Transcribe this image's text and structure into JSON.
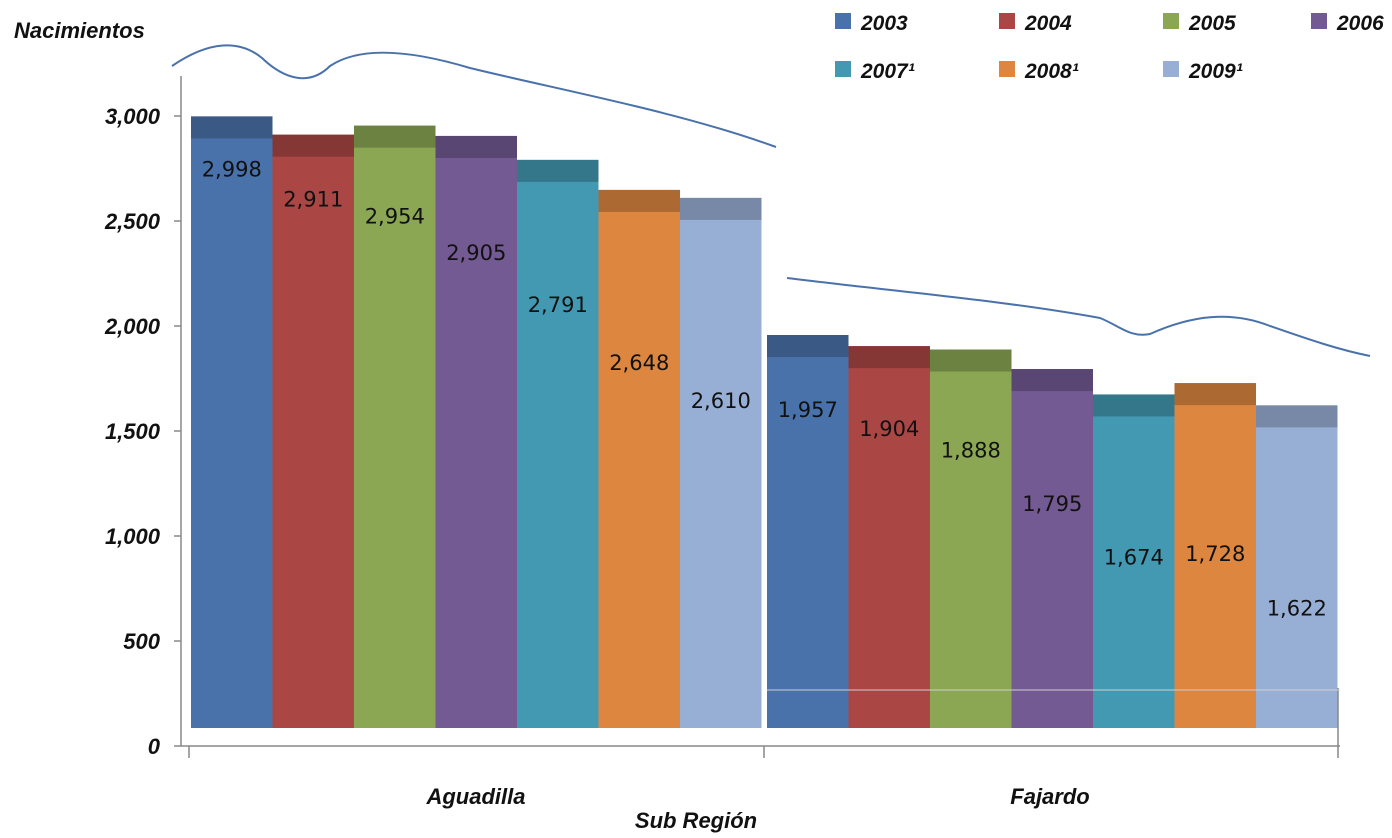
{
  "chart_data": {
    "type": "bar",
    "ylabel": "Nacimientos",
    "xlabel": "Sub Región",
    "categories": [
      "Aguadilla",
      "Fajardo"
    ],
    "series": [
      {
        "name": "2003",
        "color": "#4A72AA",
        "values": [
          2998,
          1957
        ]
      },
      {
        "name": "2004",
        "color": "#AA4644",
        "values": [
          2911,
          1904
        ]
      },
      {
        "name": "2005",
        "color": "#8BA753",
        "values": [
          2954,
          1888
        ]
      },
      {
        "name": "2006",
        "color": "#745A92",
        "values": [
          2905,
          1795
        ]
      },
      {
        "name": "2007¹",
        "color": "#4399B2",
        "values": [
          2791,
          1674
        ]
      },
      {
        "name": "2008¹",
        "color": "#DC8640",
        "values": [
          2648,
          1728
        ]
      },
      {
        "name": "2009¹",
        "color": "#98AFD5",
        "values": [
          2610,
          1622
        ]
      }
    ],
    "data_labels": [
      [
        "2,998",
        "2,911",
        "2,954",
        "2,905",
        "2,791",
        "2,648",
        "2,610"
      ],
      [
        "1,957",
        "1,904",
        "1,888",
        "1,795",
        "1,674",
        "1,728",
        "1,622"
      ]
    ],
    "yticks": [
      "0",
      "500",
      "1,000",
      "1,500",
      "2,000",
      "2,500",
      "3,000"
    ],
    "ylim": [
      0,
      3000
    ],
    "grid": false,
    "legend_position": "top-right"
  }
}
